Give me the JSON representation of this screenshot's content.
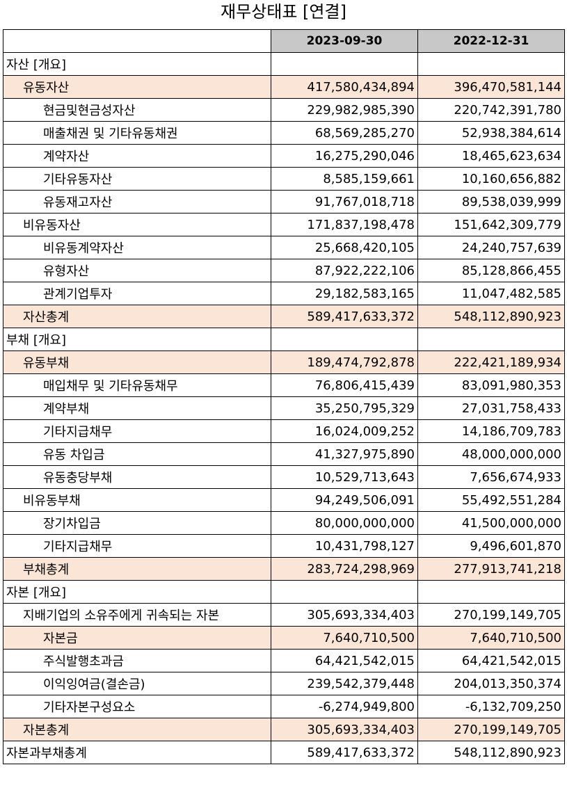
{
  "title": "재무상태표 [연결]",
  "headers": [
    "",
    "2023-09-30",
    "2022-12-31"
  ],
  "rows": [
    {
      "label": "자산 [개요]",
      "level": 0,
      "highlight": false,
      "v1": "",
      "v2": ""
    },
    {
      "label": "유동자산",
      "level": 1,
      "highlight": true,
      "v1": "417,580,434,894",
      "v2": "396,470,581,144"
    },
    {
      "label": "현금및현금성자산",
      "level": 2,
      "highlight": false,
      "v1": "229,982,985,390",
      "v2": "220,742,391,780"
    },
    {
      "label": "매출채권 및 기타유동채권",
      "level": 2,
      "highlight": false,
      "v1": "68,569,285,270",
      "v2": "52,938,384,614"
    },
    {
      "label": "계약자산",
      "level": 2,
      "highlight": false,
      "v1": "16,275,290,046",
      "v2": "18,465,623,634"
    },
    {
      "label": "기타유동자산",
      "level": 2,
      "highlight": false,
      "v1": "8,585,159,661",
      "v2": "10,160,656,882"
    },
    {
      "label": "유동재고자산",
      "level": 2,
      "highlight": false,
      "v1": "91,767,018,718",
      "v2": "89,538,039,999"
    },
    {
      "label": "비유동자산",
      "level": 1,
      "highlight": false,
      "v1": "171,837,198,478",
      "v2": "151,642,309,779"
    },
    {
      "label": "비유동계약자산",
      "level": 2,
      "highlight": false,
      "v1": "25,668,420,105",
      "v2": "24,240,757,639"
    },
    {
      "label": "유형자산",
      "level": 2,
      "highlight": false,
      "v1": "87,922,222,106",
      "v2": "85,128,866,455"
    },
    {
      "label": "관계기업투자",
      "level": 2,
      "highlight": false,
      "v1": "29,182,583,165",
      "v2": "11,047,482,585"
    },
    {
      "label": "자산총계",
      "level": 1,
      "highlight": true,
      "v1": "589,417,633,372",
      "v2": "548,112,890,923"
    },
    {
      "label": "부채 [개요]",
      "level": 0,
      "highlight": false,
      "v1": "",
      "v2": ""
    },
    {
      "label": "유동부채",
      "level": 1,
      "highlight": true,
      "v1": "189,474,792,878",
      "v2": "222,421,189,934"
    },
    {
      "label": "매입채무 및 기타유동채무",
      "level": 2,
      "highlight": false,
      "v1": "76,806,415,439",
      "v2": "83,091,980,353"
    },
    {
      "label": "계약부채",
      "level": 2,
      "highlight": false,
      "v1": "35,250,795,329",
      "v2": "27,031,758,433"
    },
    {
      "label": "기타지급채무",
      "level": 2,
      "highlight": false,
      "v1": "16,024,009,252",
      "v2": "14,186,709,783"
    },
    {
      "label": "유동 차입금",
      "level": 2,
      "highlight": false,
      "v1": "41,327,975,890",
      "v2": "48,000,000,000"
    },
    {
      "label": "유동충당부채",
      "level": 2,
      "highlight": false,
      "v1": "10,529,713,643",
      "v2": "7,656,674,933"
    },
    {
      "label": "비유동부채",
      "level": 1,
      "highlight": false,
      "v1": "94,249,506,091",
      "v2": "55,492,551,284"
    },
    {
      "label": "장기차입금",
      "level": 2,
      "highlight": false,
      "v1": "80,000,000,000",
      "v2": "41,500,000,000"
    },
    {
      "label": "기타지급채무",
      "level": 2,
      "highlight": false,
      "v1": "10,431,798,127",
      "v2": "9,496,601,870"
    },
    {
      "label": "부채총계",
      "level": 1,
      "highlight": true,
      "v1": "283,724,298,969",
      "v2": "277,913,741,218"
    },
    {
      "label": "자본 [개요]",
      "level": 0,
      "highlight": false,
      "v1": "",
      "v2": ""
    },
    {
      "label": "지배기업의 소유주에게 귀속되는 자본",
      "level": 1,
      "highlight": false,
      "v1": "305,693,334,403",
      "v2": "270,199,149,705"
    },
    {
      "label": "자본금",
      "level": 2,
      "highlight": true,
      "v1": "7,640,710,500",
      "v2": "7,640,710,500"
    },
    {
      "label": "주식발행초과금",
      "level": 2,
      "highlight": false,
      "v1": "64,421,542,015",
      "v2": "64,421,542,015"
    },
    {
      "label": "이익잉여금(결손금)",
      "level": 2,
      "highlight": false,
      "v1": "239,542,379,448",
      "v2": "204,013,350,374"
    },
    {
      "label": "기타자본구성요소",
      "level": 2,
      "highlight": false,
      "v1": "-6,274,949,800",
      "v2": "-6,132,709,250"
    },
    {
      "label": "자본총계",
      "level": 1,
      "highlight": true,
      "v1": "305,693,334,403",
      "v2": "270,199,149,705"
    },
    {
      "label": "자본과부채총계",
      "level": 0,
      "highlight": false,
      "v1": "589,417,633,372",
      "v2": "548,112,890,923"
    }
  ]
}
